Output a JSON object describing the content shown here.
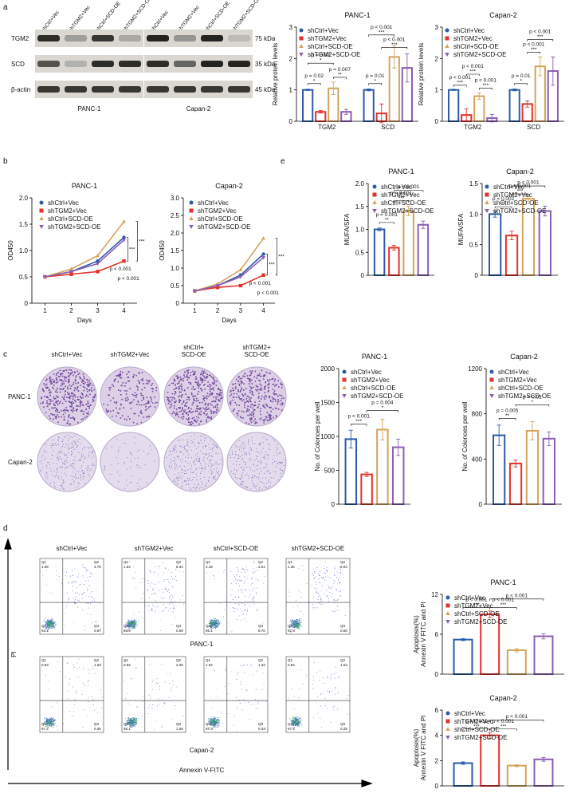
{
  "figure": {
    "panel_labels": [
      "a",
      "b",
      "c",
      "d",
      "e"
    ],
    "groups": [
      "shCtrl+Vec",
      "shTGM2+Vec",
      "shCtrl+SCD-OE",
      "shTGM2+SCD-OE"
    ],
    "blot": {
      "rows": [
        "TGM2",
        "SCD",
        "β-actin"
      ],
      "sizes": [
        "75 kDa",
        "35 kDa",
        "45 kDa"
      ],
      "cell_lines": [
        "PANC-1",
        "Capan-2"
      ]
    },
    "colony": {
      "columns": [
        [
          "shCtrl+Vec"
        ],
        [
          "shTGM2+Vec"
        ],
        [
          "shCtrl+",
          "SCD-OE"
        ],
        [
          "shTGM2+",
          "SCD-OE"
        ]
      ],
      "rows": [
        "PANC-1",
        "Capan-2"
      ]
    },
    "flow": {
      "rows": [
        "PANC-1",
        "Capan-2"
      ],
      "quadrants": [
        "Q1",
        "Q2",
        "Q3",
        "Q4"
      ],
      "values": [
        [
          [
            "1.59",
            "4.75",
            "0.57",
            "93.1"
          ],
          [
            "1.84",
            "8.34",
            "0.69",
            "88.9"
          ],
          [
            "1.18",
            "3.01",
            "0.70",
            "95.1"
          ],
          [
            "1.36",
            "5.03",
            "0.68",
            "92.9"
          ]
        ],
        [
          [
            "0.83",
            "1.63",
            "0.35",
            "97.2"
          ],
          [
            "0.82",
            "2.49",
            "1.58",
            "95.1"
          ],
          [
            "1.02",
            "1.33",
            "0.34",
            "97.3"
          ],
          [
            "0.84",
            "1.53",
            "0.25",
            "97.4"
          ]
        ]
      ],
      "y_axis": "PI",
      "x_axis": "Annexin V-FITC"
    }
  },
  "chart_data": [
    {
      "type": "bar",
      "title": "PANC-1",
      "ylabel": "Relative protein levels",
      "categories": [
        "TGM2",
        "SCD"
      ],
      "ylim": [
        0,
        3
      ],
      "yticks": [
        0,
        1,
        2,
        3
      ],
      "series": [
        {
          "name": "shCtrl+Vec",
          "color": "#2b5ba8",
          "marker": "circle",
          "values": [
            1.0,
            1.0
          ],
          "errors": [
            0.02,
            0.03
          ]
        },
        {
          "name": "shTGM2+Vec",
          "color": "#e5312b",
          "marker": "square",
          "values": [
            0.3,
            0.25
          ],
          "errors": [
            0.04,
            0.3
          ]
        },
        {
          "name": "shCtrl+SCD-OE",
          "color": "#d4a35c",
          "marker": "triangle-up",
          "values": [
            1.05,
            2.05
          ],
          "errors": [
            0.2,
            0.35
          ]
        },
        {
          "name": "shTGM2+SCD-OE",
          "color": "#8b5db3",
          "marker": "triangle-down",
          "values": [
            0.3,
            1.7
          ],
          "errors": [
            0.08,
            0.45
          ]
        }
      ],
      "annotations": [
        {
          "p": "p = 0.02",
          "stars": "*"
        },
        {
          "p": "p = 0.007",
          "stars": "**"
        },
        {
          "p": "p = 0.02",
          "stars": "*"
        },
        {
          "p": "p = 0.01",
          "stars": "*"
        },
        {
          "p": "p < 0.001",
          "stars": "***"
        },
        {
          "p": "p < 0.001",
          "stars": "***"
        }
      ]
    },
    {
      "type": "bar",
      "title": "Capan-2",
      "ylabel": "Relative protein levels",
      "categories": [
        "TGM2",
        "SCD"
      ],
      "ylim": [
        0,
        3
      ],
      "yticks": [
        0,
        1,
        2,
        3
      ],
      "series": [
        {
          "name": "shCtrl+Vec",
          "color": "#2b5ba8",
          "marker": "circle",
          "values": [
            1.0,
            1.0
          ],
          "errors": [
            0.02,
            0.03
          ]
        },
        {
          "name": "shTGM2+Vec",
          "color": "#e5312b",
          "marker": "square",
          "values": [
            0.2,
            0.55
          ],
          "errors": [
            0.2,
            0.1
          ]
        },
        {
          "name": "shCtrl+SCD-OE",
          "color": "#d4a35c",
          "marker": "triangle-up",
          "values": [
            0.8,
            1.75
          ],
          "errors": [
            0.1,
            0.3
          ]
        },
        {
          "name": "shTGM2+SCD-OE",
          "color": "#8b5db3",
          "marker": "triangle-down",
          "values": [
            0.1,
            1.6
          ],
          "errors": [
            0.12,
            0.45
          ]
        }
      ],
      "annotations": [
        {
          "p": "p < 0.001",
          "stars": "***"
        },
        {
          "p": "p < 0.001",
          "stars": "***"
        },
        {
          "p": "p < 0.001",
          "stars": "***"
        },
        {
          "p": "p = 0.01",
          "stars": "*"
        },
        {
          "p": "p < 0.001",
          "stars": "***"
        },
        {
          "p": "p < 0.001",
          "stars": "***"
        }
      ]
    },
    {
      "type": "line",
      "title": "PANC-1",
      "xlabel": "Days",
      "ylabel": "OD450",
      "x": [
        1,
        2,
        3,
        4
      ],
      "xlim": [
        0.5,
        4.5
      ],
      "xticks": [
        1,
        2,
        3,
        4
      ],
      "ylim": [
        0,
        2
      ],
      "yticks": [
        0,
        0.5,
        {
          "value": 1,
          "label": "1.0"
        },
        1.5,
        {
          "value": 2,
          "label": "2.0"
        }
      ],
      "series": [
        {
          "name": "shCtrl+Vec",
          "color": "#2b5ba8",
          "marker": "circle",
          "values": [
            0.5,
            0.6,
            0.8,
            1.25
          ]
        },
        {
          "name": "shTGM2+Vec",
          "color": "#e5312b",
          "marker": "square",
          "values": [
            0.5,
            0.55,
            0.6,
            0.8
          ]
        },
        {
          "name": "shCtrl+SCD-OE",
          "color": "#d4a35c",
          "marker": "triangle-up",
          "values": [
            0.5,
            0.65,
            0.9,
            1.55
          ]
        },
        {
          "name": "shTGM2+SCD-OE",
          "color": "#8b5db3",
          "marker": "triangle-down",
          "values": [
            0.5,
            0.6,
            0.75,
            1.2
          ]
        }
      ],
      "annotations": [
        {
          "p": "p < 0.001",
          "stars": "***"
        },
        {
          "p": "p < 0.001",
          "stars": "***"
        }
      ]
    },
    {
      "type": "line",
      "title": "Capan-2",
      "xlabel": "Days",
      "ylabel": "OD450",
      "x": [
        1,
        2,
        3,
        4
      ],
      "xlim": [
        0.5,
        4.5
      ],
      "xticks": [
        1,
        2,
        3,
        4
      ],
      "ylim": [
        0,
        3
      ],
      "yticks": [
        0,
        0.5,
        {
          "value": 1,
          "label": "1.0"
        },
        1.5,
        {
          "value": 2,
          "label": "2.0"
        },
        2.5,
        {
          "value": 3,
          "label": "3.0"
        }
      ],
      "series": [
        {
          "name": "shCtrl+Vec",
          "color": "#2b5ba8",
          "marker": "circle",
          "values": [
            0.35,
            0.5,
            0.8,
            1.4
          ]
        },
        {
          "name": "shTGM2+Vec",
          "color": "#e5312b",
          "marker": "square",
          "values": [
            0.35,
            0.45,
            0.5,
            0.8
          ]
        },
        {
          "name": "shCtrl+SCD-OE",
          "color": "#d4a35c",
          "marker": "triangle-up",
          "values": [
            0.35,
            0.55,
            0.95,
            1.85
          ]
        },
        {
          "name": "shTGM2+SCD-OE",
          "color": "#8b5db3",
          "marker": "triangle-down",
          "values": [
            0.35,
            0.5,
            0.75,
            1.3
          ]
        }
      ],
      "annotations": [
        {
          "p": "p < 0.001",
          "stars": "***"
        },
        {
          "p": "p < 0.001",
          "stars": "***"
        }
      ]
    },
    {
      "type": "bar",
      "title": "PANC-1",
      "ylabel": "MUFA/SFA",
      "categories": [
        null
      ],
      "ylim": [
        0,
        2
      ],
      "yticks": [
        0,
        0.5,
        {
          "value": 1,
          "label": "1.0"
        },
        1.5,
        {
          "value": 2,
          "label": "2.0"
        }
      ],
      "series": [
        {
          "name": "shCtrl+Vec",
          "color": "#2b5ba8",
          "marker": "circle",
          "values": [
            1.0
          ],
          "errors": [
            0.03
          ]
        },
        {
          "name": "shTGM2+Vec",
          "color": "#e5312b",
          "marker": "square",
          "values": [
            0.6
          ],
          "errors": [
            0.05
          ]
        },
        {
          "name": "shCtrl+SCD-OE",
          "color": "#d4a35c",
          "marker": "triangle-up",
          "values": [
            1.4
          ],
          "errors": [
            0.1
          ]
        },
        {
          "name": "shTGM2+SCD-OE",
          "color": "#8b5db3",
          "marker": "triangle-down",
          "values": [
            1.1
          ],
          "errors": [
            0.08
          ]
        }
      ],
      "annotations": [
        {
          "p": "p = 0.001",
          "stars": "**"
        },
        {
          "p": "p < 0.001",
          "stars": "***"
        },
        {
          "p": "p < 0.001"
        }
      ]
    },
    {
      "type": "bar",
      "title": "Capan-2",
      "ylabel": "MUFA/SFA",
      "categories": [
        null
      ],
      "ylim": [
        0,
        1.5
      ],
      "yticks": [
        0,
        0.5,
        {
          "value": 1,
          "label": "1.0"
        },
        1.5
      ],
      "series": [
        {
          "name": "shCtrl+Vec",
          "color": "#2b5ba8",
          "marker": "circle",
          "values": [
            1.0
          ],
          "errors": [
            0.05
          ]
        },
        {
          "name": "shTGM2+Vec",
          "color": "#e5312b",
          "marker": "square",
          "values": [
            0.65
          ],
          "errors": [
            0.07
          ]
        },
        {
          "name": "shCtrl+SCD-OE",
          "color": "#d4a35c",
          "marker": "triangle-up",
          "values": [
            1.25
          ],
          "errors": [
            0.04
          ]
        },
        {
          "name": "shTGM2+SCD-OE",
          "color": "#8b5db3",
          "marker": "triangle-down",
          "values": [
            1.05
          ],
          "errors": [
            0.08
          ]
        }
      ],
      "annotations": [
        {
          "p": "p = 0.002",
          "stars": "**"
        },
        {
          "p": "p < 0.001",
          "stars": "***"
        },
        {
          "p": "p < 0.001"
        }
      ]
    },
    {
      "type": "bar",
      "title": "PANC-1",
      "ylabel": "No. of Colonoes per well",
      "categories": [
        null
      ],
      "ylim": [
        0,
        2000
      ],
      "yticks": [
        0,
        500,
        1000,
        1500,
        2000
      ],
      "series": [
        {
          "name": "shCtrl+Vec",
          "color": "#2b5ba8",
          "marker": "circle",
          "values": [
            960
          ],
          "errors": [
            130
          ]
        },
        {
          "name": "shTGM2+Vec",
          "color": "#e5312b",
          "marker": "square",
          "values": [
            440
          ],
          "errors": [
            30
          ]
        },
        {
          "name": "shCtrl+SCD-OE",
          "color": "#d4a35c",
          "marker": "triangle-up",
          "values": [
            1100
          ],
          "errors": [
            150
          ]
        },
        {
          "name": "shTGM2+SCD-OE",
          "color": "#8b5db3",
          "marker": "triangle-down",
          "values": [
            840
          ],
          "errors": [
            120
          ]
        }
      ],
      "annotations": [
        {
          "p": "p < 0.001",
          "stars": "***"
        },
        {
          "p": "p = 0.004",
          "stars": "*"
        }
      ]
    },
    {
      "type": "bar",
      "title": "Capan-2",
      "ylabel": "No. of Colonoes per well",
      "categories": [
        null
      ],
      "ylim": [
        0,
        1200
      ],
      "yticks": [
        0,
        400,
        800,
        1200
      ],
      "series": [
        {
          "name": "shCtrl+Vec",
          "color": "#2b5ba8",
          "marker": "circle",
          "values": [
            610
          ],
          "errors": [
            90
          ]
        },
        {
          "name": "shTGM2+Vec",
          "color": "#e5312b",
          "marker": "square",
          "values": [
            360
          ],
          "errors": [
            30
          ]
        },
        {
          "name": "shCtrl+SCD-OE",
          "color": "#d4a35c",
          "marker": "triangle-up",
          "values": [
            650
          ],
          "errors": [
            80
          ]
        },
        {
          "name": "shTGM2+SCD-OE",
          "color": "#8b5db3",
          "marker": "triangle-down",
          "values": [
            580
          ],
          "errors": [
            60
          ]
        }
      ],
      "annotations": [
        {
          "p": "p = 0.005",
          "stars": "**"
        },
        {
          "p": "p = 0.01",
          "stars": "*"
        }
      ]
    },
    {
      "type": "bar",
      "title": "PANC-1",
      "ylabel": [
        "Apoptosis(%)",
        "Annexin V FITC and PI"
      ],
      "categories": [
        null
      ],
      "ylim": [
        0,
        12
      ],
      "yticks": [
        0,
        6,
        12
      ],
      "series": [
        {
          "name": "shCtrl+Vec",
          "color": "#2b5ba8",
          "marker": "circle",
          "values": [
            5.2
          ],
          "errors": [
            0.15
          ]
        },
        {
          "name": "shTGM2+Vec",
          "color": "#e5312b",
          "marker": "square",
          "values": [
            9.0
          ],
          "errors": [
            0.5
          ]
        },
        {
          "name": "shCtrl+SCD-OE",
          "color": "#d4a35c",
          "marker": "triangle-up",
          "values": [
            3.6
          ],
          "errors": [
            0.25
          ]
        },
        {
          "name": "shTGM2+SCD-OE",
          "color": "#8b5db3",
          "marker": "triangle-down",
          "values": [
            5.7
          ],
          "errors": [
            0.4
          ]
        }
      ],
      "annotations": [
        {
          "p": "p < 0.001",
          "stars": "***"
        },
        {
          "p": "p < 0.001",
          "stars": "***"
        },
        {
          "p": "p < 0.001"
        }
      ]
    },
    {
      "type": "bar",
      "title": "Capan-2",
      "ylabel": [
        "Apoptosis(%)",
        "Annexin V FITC and PI"
      ],
      "categories": [
        null
      ],
      "ylim": [
        0,
        6
      ],
      "yticks": [
        0,
        2,
        4,
        6
      ],
      "series": [
        {
          "name": "shCtrl+Vec",
          "color": "#2b5ba8",
          "marker": "circle",
          "values": [
            1.8
          ],
          "errors": [
            0.1
          ]
        },
        {
          "name": "shTGM2+Vec",
          "color": "#e5312b",
          "marker": "square",
          "values": [
            4.0
          ],
          "errors": [
            0.22
          ]
        },
        {
          "name": "shCtrl+SCD-OE",
          "color": "#d4a35c",
          "marker": "triangle-up",
          "values": [
            1.6
          ],
          "errors": [
            0.08
          ]
        },
        {
          "name": "shTGM2+SCD-OE",
          "color": "#8b5db3",
          "marker": "triangle-down",
          "values": [
            2.1
          ],
          "errors": [
            0.15
          ]
        }
      ],
      "annotations": [
        {
          "p": "p < 0.001",
          "stars": "***"
        },
        {
          "p": "p < 0.001",
          "stars": "***"
        },
        {
          "p": "p < 0.001"
        }
      ]
    }
  ]
}
